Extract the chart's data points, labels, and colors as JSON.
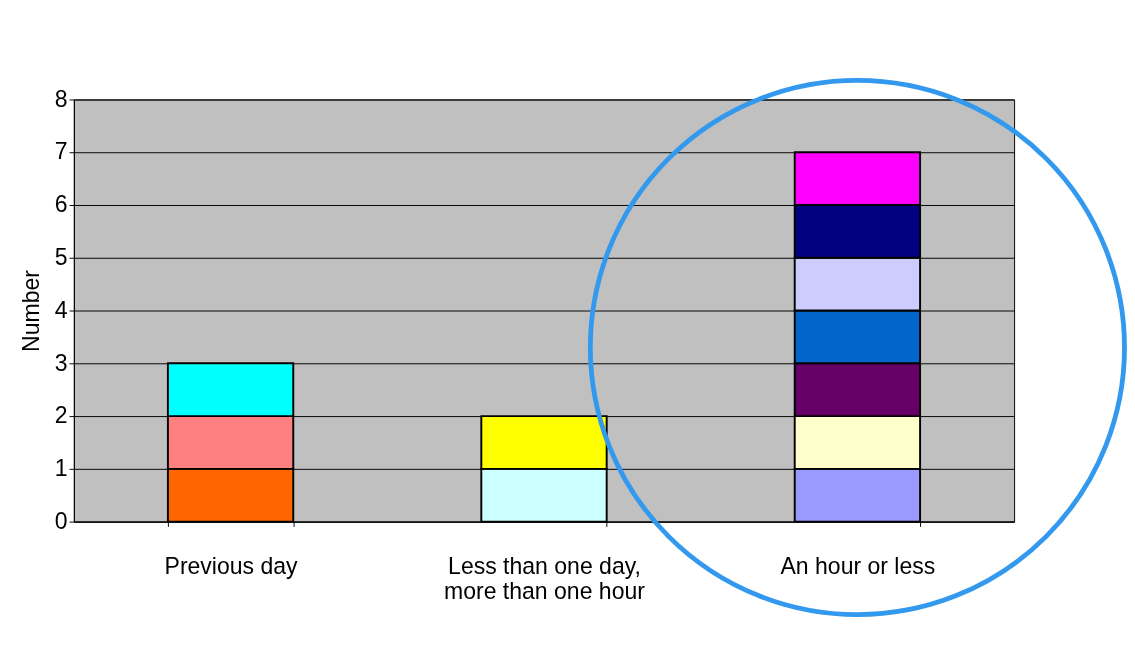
{
  "chart_data": {
    "type": "bar",
    "stacked": true,
    "ylabel": "Number",
    "categories": [
      "Previous day",
      "Less than one day,\nmore than one hour",
      "An hour or less"
    ],
    "series": [
      {
        "colors": [
          "#ff6600",
          "#ccffff",
          "#9999ff"
        ],
        "values": [
          1,
          1,
          1
        ]
      },
      {
        "colors": [
          "#ff8080",
          "#ffff00",
          "#ffffcc"
        ],
        "values": [
          1,
          1,
          1
        ]
      },
      {
        "colors": [
          "#00ffff",
          null,
          "#660066"
        ],
        "values": [
          1,
          null,
          1
        ]
      },
      {
        "colors": [
          null,
          null,
          "#0066cc"
        ],
        "values": [
          null,
          null,
          1
        ]
      },
      {
        "colors": [
          null,
          null,
          "#ccccff"
        ],
        "values": [
          null,
          null,
          1
        ]
      },
      {
        "colors": [
          null,
          null,
          "#000080"
        ],
        "values": [
          null,
          null,
          1
        ]
      },
      {
        "colors": [
          null,
          null,
          "#ff00ff"
        ],
        "values": [
          null,
          null,
          1
        ]
      }
    ],
    "ylim": [
      0,
      8
    ],
    "yticks": [
      0,
      1,
      2,
      3,
      4,
      5,
      6,
      7,
      8
    ],
    "grid": "y"
  }
}
